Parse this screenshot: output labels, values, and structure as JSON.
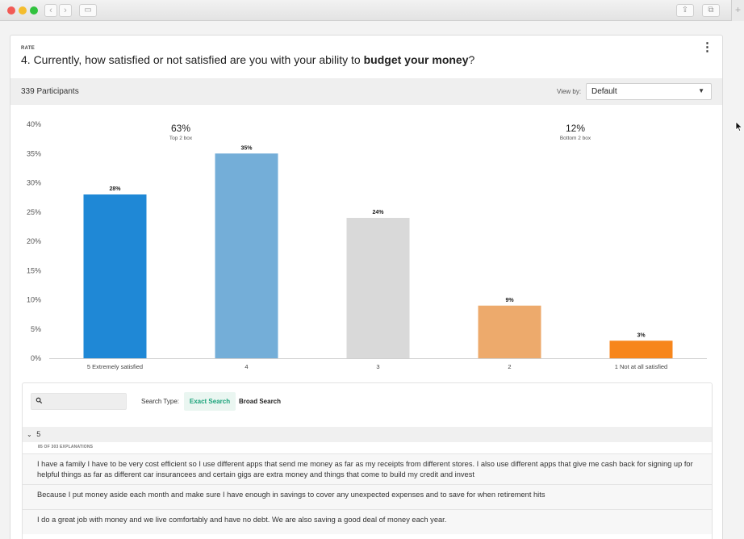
{
  "window": {
    "back_glyph": "‹",
    "forward_glyph": "›",
    "sidebar_glyph": "▭",
    "share_glyph": "⇪",
    "tabs_glyph": "⧉",
    "add_glyph": "+"
  },
  "question": {
    "type_label": "RATE",
    "prefix": "4. Currently, how satisfied or not satisfied are you with your ability to ",
    "bold": "budget your money",
    "suffix": "?",
    "menu_glyph": "⋮"
  },
  "toolbar": {
    "participants": "339 Participants",
    "view_by_label": "View by:",
    "view_by_value": "Default",
    "caret": "▼"
  },
  "chart_data": {
    "type": "bar",
    "categories": [
      "5 Extremely satisfied",
      "4",
      "3",
      "2",
      "1 Not at all satisfied"
    ],
    "values": [
      28,
      35,
      24,
      9,
      3
    ],
    "value_labels": [
      "28%",
      "35%",
      "24%",
      "9%",
      "3%"
    ],
    "colors": [
      "#1f88d6",
      "#74aed8",
      "#d9d9d9",
      "#edaa6c",
      "#f7861c"
    ],
    "y_ticks": [
      "0%",
      "5%",
      "10%",
      "15%",
      "20%",
      "25%",
      "30%",
      "35%",
      "40%"
    ],
    "ylim": [
      0,
      40
    ],
    "grid": false,
    "summaries": [
      {
        "value": "63%",
        "label": "Top 2 box"
      },
      {
        "value": "12%",
        "label": "Bottom 2 box"
      }
    ]
  },
  "search": {
    "placeholder": "",
    "type_label": "Search Type:",
    "exact": "Exact Search",
    "broad": "Broad Search"
  },
  "group": {
    "chevron": "⌄",
    "label": "5",
    "count": "85 OF 303 EXPLANATIONS",
    "responses": [
      "I have a family I have to be very cost efficient so I use different apps that send me money as far as my receipts from different stores. I also use different apps that give me cash back for signing up for helpful things as far as different car insurancees and certain gigs are extra money and things that come to build my credit and invest",
      "Because I put money aside each month and make sure I have enough in savings to cover any unexpected expenses and to save for when retirement hits",
      "I do a great job with money and we live comfortably and have no debt. We are also saving a good deal of money each year."
    ]
  }
}
